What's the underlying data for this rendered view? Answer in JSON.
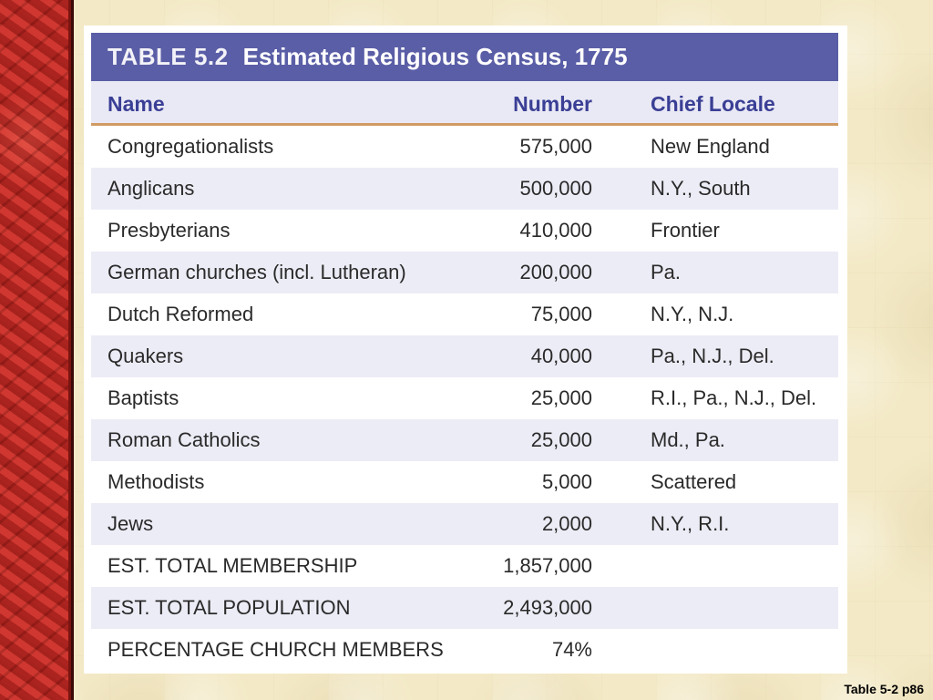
{
  "table": {
    "number_label": "TABLE 5.2",
    "title": "Estimated Religious Census, 1775",
    "headers": {
      "name": "Name",
      "number": "Number",
      "locale": "Chief Locale"
    },
    "rows": [
      {
        "name": "Congregationalists",
        "number": "575,000",
        "locale": "New England"
      },
      {
        "name": "Anglicans",
        "number": "500,000",
        "locale": "N.Y., South"
      },
      {
        "name": "Presbyterians",
        "number": "410,000",
        "locale": "Frontier"
      },
      {
        "name": "German churches (incl. Lutheran)",
        "number": "200,000",
        "locale": "Pa."
      },
      {
        "name": "Dutch Reformed",
        "number": "75,000",
        "locale": "N.Y., N.J."
      },
      {
        "name": "Quakers",
        "number": "40,000",
        "locale": "Pa., N.J., Del."
      },
      {
        "name": "Baptists",
        "number": "25,000",
        "locale": "R.I., Pa., N.J., Del."
      },
      {
        "name": "Roman Catholics",
        "number": "25,000",
        "locale": "Md., Pa."
      },
      {
        "name": "Methodists",
        "number": "5,000",
        "locale": "Scattered"
      },
      {
        "name": "Jews",
        "number": "2,000",
        "locale": "N.Y., R.I."
      },
      {
        "name": "EST. TOTAL MEMBERSHIP",
        "number": "1,857,000",
        "locale": ""
      },
      {
        "name": "EST. TOTAL POPULATION",
        "number": "2,493,000",
        "locale": ""
      },
      {
        "name": "PERCENTAGE CHURCH MEMBERS",
        "number": "74%",
        "locale": ""
      }
    ]
  },
  "footer": {
    "label": "Table 5-2 p86"
  },
  "colors": {
    "title_bg": "#5a5ea6",
    "header_text": "#3a3f95",
    "header_rule": "#d19a63",
    "stripe": "#ececf6",
    "border_red": "#c7312a"
  }
}
